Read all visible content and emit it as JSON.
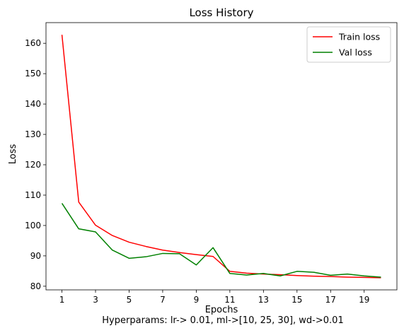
{
  "chart_data": {
    "type": "line",
    "title": "Loss History",
    "xlabel": "Epochs",
    "ylabel": "Loss",
    "caption": "Hyperparams: lr-> 0.01, ml->[10, 25, 30], wd->0.01",
    "x": [
      1,
      2,
      3,
      4,
      5,
      6,
      7,
      8,
      9,
      10,
      11,
      12,
      13,
      14,
      15,
      16,
      17,
      18,
      19,
      20
    ],
    "series": [
      {
        "name": "Train loss",
        "color": "#ff0000",
        "values": [
          162.8,
          107.7,
          100.1,
          96.7,
          94.5,
          93.1,
          91.9,
          91.1,
          90.4,
          89.8,
          84.9,
          84.3,
          84.0,
          83.8,
          83.5,
          83.3,
          83.2,
          83.0,
          82.9,
          82.8
        ]
      },
      {
        "name": "Val loss",
        "color": "#008000",
        "values": [
          107.3,
          98.9,
          97.9,
          91.9,
          89.2,
          89.7,
          90.8,
          90.7,
          87.0,
          92.7,
          84.2,
          83.7,
          84.2,
          83.4,
          84.9,
          84.6,
          83.6,
          84.0,
          83.4,
          83.0
        ]
      }
    ],
    "xticks": [
      1,
      3,
      5,
      7,
      9,
      11,
      13,
      15,
      17,
      19
    ],
    "yticks": [
      80,
      90,
      100,
      110,
      120,
      130,
      140,
      150,
      160
    ],
    "xlim": [
      0.05,
      20.95
    ],
    "ylim": [
      78.8,
      166.8
    ],
    "grid": false,
    "legend_position": "top-right"
  }
}
